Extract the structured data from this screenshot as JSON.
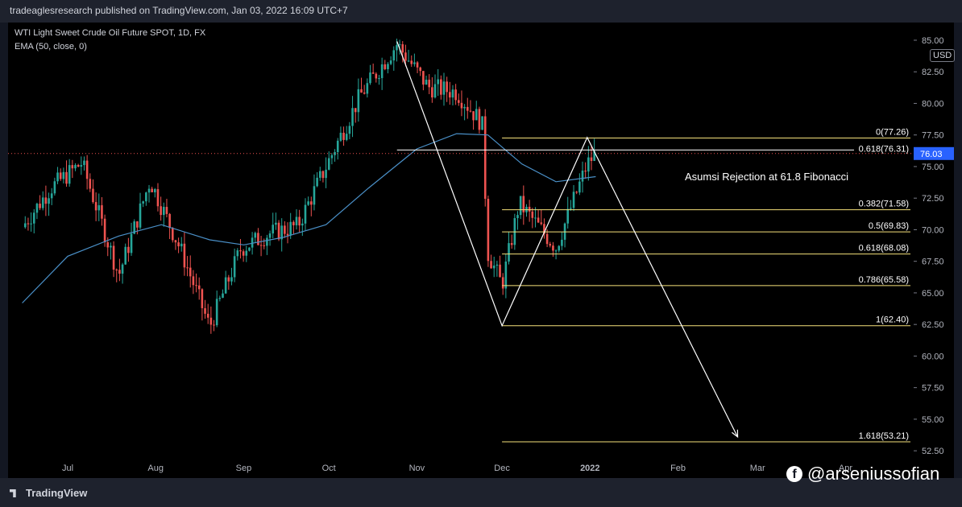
{
  "header": {
    "published": "tradeaglesresearch published on TradingView.com, Jan 03, 2022 16:09 UTC+7"
  },
  "legend": {
    "symbol": "WTI Light Sweet Crude Oil Future SPOT, 1D, FX",
    "indicator": "EMA (50, close, 0)"
  },
  "currency": "USD",
  "footer": {
    "brand": "TradingView"
  },
  "watermark": {
    "icon": "f",
    "handle": "@arseniussofian"
  },
  "colors": {
    "background": "#000000",
    "up": "#26a69a",
    "down": "#ef5350",
    "ema": "#4a90c8",
    "fib": "#f5e17a",
    "last_price_label": "#2962ff",
    "drawing": "#ffffff"
  },
  "chart_data": {
    "type": "candlestick",
    "title": "WTI Light Sweet Crude Oil Future SPOT, 1D, FX",
    "ylim": [
      52.0,
      86.4
    ],
    "y_ticks": [
      "85.00",
      "82.50",
      "80.00",
      "77.50",
      "75.00",
      "72.50",
      "70.00",
      "67.50",
      "65.00",
      "62.50",
      "60.00",
      "57.50",
      "55.00",
      "52.50"
    ],
    "x_ticks": [
      "Jul",
      "Aug",
      "Sep",
      "Oct",
      "Nov",
      "Dec",
      "2022",
      "Feb",
      "Mar",
      "Apr"
    ],
    "last_price": "76.03",
    "close_path": [
      {
        "date": "2021-06-15",
        "close": 70.2
      },
      {
        "date": "2021-06-25",
        "close": 73.3
      },
      {
        "date": "2021-07-06",
        "close": 75.3
      },
      {
        "date": "2021-07-19",
        "close": 66.4
      },
      {
        "date": "2021-07-30",
        "close": 73.9
      },
      {
        "date": "2021-08-10",
        "close": 68.3
      },
      {
        "date": "2021-08-20",
        "close": 62.3
      },
      {
        "date": "2021-08-31",
        "close": 68.5
      },
      {
        "date": "2021-09-10",
        "close": 69.7
      },
      {
        "date": "2021-09-20",
        "close": 70.3
      },
      {
        "date": "2021-09-30",
        "close": 75.0
      },
      {
        "date": "2021-10-12",
        "close": 80.6
      },
      {
        "date": "2021-10-25",
        "close": 84.7
      },
      {
        "date": "2021-11-05",
        "close": 81.3
      },
      {
        "date": "2021-11-15",
        "close": 80.9
      },
      {
        "date": "2021-11-24",
        "close": 78.4
      },
      {
        "date": "2021-11-26",
        "close": 68.2
      },
      {
        "date": "2021-12-01",
        "close": 65.6
      },
      {
        "date": "2021-12-07",
        "close": 72.1
      },
      {
        "date": "2021-12-20",
        "close": 68.6
      },
      {
        "date": "2021-12-31",
        "close": 75.2
      },
      {
        "date": "2022-01-03",
        "close": 76.03
      }
    ],
    "ema_path": [
      {
        "date": "2021-06-15",
        "value": 64.2
      },
      {
        "date": "2021-07-01",
        "value": 67.9
      },
      {
        "date": "2021-07-19",
        "value": 69.5
      },
      {
        "date": "2021-08-03",
        "value": 70.4
      },
      {
        "date": "2021-08-20",
        "value": 69.2
      },
      {
        "date": "2021-09-01",
        "value": 68.8
      },
      {
        "date": "2021-09-15",
        "value": 69.4
      },
      {
        "date": "2021-09-30",
        "value": 70.4
      },
      {
        "date": "2021-10-15",
        "value": 73.3
      },
      {
        "date": "2021-11-01",
        "value": 76.4
      },
      {
        "date": "2021-11-15",
        "value": 77.6
      },
      {
        "date": "2021-11-26",
        "value": 77.5
      },
      {
        "date": "2021-12-08",
        "value": 75.2
      },
      {
        "date": "2021-12-20",
        "value": 73.8
      },
      {
        "date": "2022-01-03",
        "value": 74.2
      }
    ],
    "fibonacci": [
      {
        "label": "0(77.26)",
        "value": 77.26
      },
      {
        "label": "0.618(76.31)",
        "value": 76.31
      },
      {
        "label": "0.382(71.58)",
        "value": 71.58
      },
      {
        "label": "0.5(69.83)",
        "value": 69.83
      },
      {
        "label": "0.618(68.08)",
        "value": 68.08
      },
      {
        "label": "0.786(65.58)",
        "value": 65.58
      },
      {
        "label": "1(62.40)",
        "value": 62.4
      },
      {
        "label": "1.618(53.21)",
        "value": 53.21
      }
    ],
    "drawing": [
      {
        "date": "2021-10-25",
        "price": 84.9
      },
      {
        "date": "2021-12-01",
        "price": 62.4
      },
      {
        "date": "2021-12-31",
        "price": 77.3
      },
      {
        "date": "2022-02-22",
        "price": 53.6
      }
    ],
    "annotation": "Asumsi Rejection at 61.8 Fibonacci"
  }
}
